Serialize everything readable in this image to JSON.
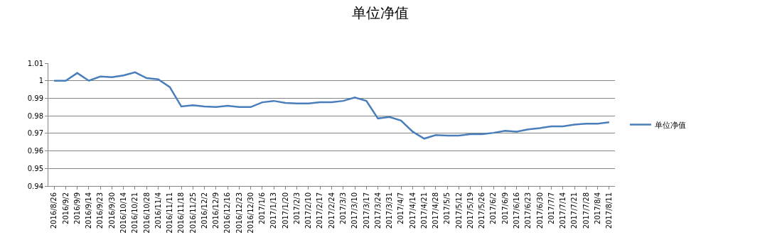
{
  "chart_data": {
    "type": "line",
    "title": "单位净值",
    "categories": [
      "2016/8/26",
      "2016/9/2",
      "2016/9/9",
      "2016/9/14",
      "2016/9/23",
      "2016/9/30",
      "2016/10/14",
      "2016/10/21",
      "2016/10/28",
      "2016/11/4",
      "2016/11/11",
      "2016/11/18",
      "2016/11/25",
      "2016/12/2",
      "2016/12/9",
      "2016/12/16",
      "2016/12/23",
      "2016/12/30",
      "2017/1/6",
      "2017/1/13",
      "2017/1/20",
      "2017/2/3",
      "2017/2/10",
      "2017/2/17",
      "2017/2/24",
      "2017/3/3",
      "2017/3/10",
      "2017/3/17",
      "2017/3/24",
      "2017/3/31",
      "2017/4/7",
      "2017/4/14",
      "2017/4/21",
      "2017/4/28",
      "2017/5/5",
      "2017/5/12",
      "2017/5/19",
      "2017/5/26",
      "2017/6/2",
      "2017/6/9",
      "2017/6/16",
      "2017/6/23",
      "2017/6/30",
      "2017/7/7",
      "2017/7/14",
      "2017/7/21",
      "2017/7/28",
      "2017/8/4",
      "2017/8/11"
    ],
    "series": [
      {
        "name": "单位净值",
        "color": "#4a7ebb",
        "values": [
          1.0,
          1.0,
          1.0044,
          1.0,
          1.0024,
          1.002,
          1.003,
          1.0048,
          1.0015,
          1.0008,
          0.9964,
          0.9853,
          0.986,
          0.9853,
          0.985,
          0.9857,
          0.985,
          0.985,
          0.9877,
          0.9885,
          0.9873,
          0.987,
          0.987,
          0.9877,
          0.9877,
          0.9885,
          0.9905,
          0.9885,
          0.9785,
          0.9793,
          0.9773,
          0.971,
          0.967,
          0.969,
          0.9687,
          0.9687,
          0.9695,
          0.9695,
          0.9703,
          0.9715,
          0.971,
          0.9723,
          0.973,
          0.974,
          0.974,
          0.975,
          0.9755,
          0.9755,
          0.9763
        ]
      }
    ],
    "ylim": [
      0.94,
      1.01
    ],
    "yticks": [
      0.94,
      0.95,
      0.96,
      0.97,
      0.98,
      0.99,
      1,
      1.01
    ],
    "grid": "y",
    "legend": "right",
    "marker": "none",
    "line_style": "solid"
  }
}
